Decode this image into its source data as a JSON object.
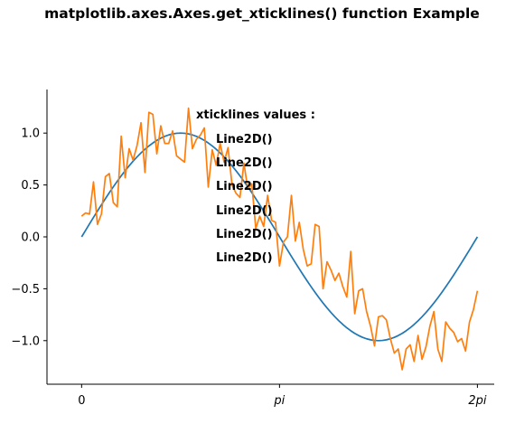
{
  "chart_data": {
    "type": "line",
    "title": "matplotlib.axes.Axes.get_xticklines() function Example",
    "xlabel": "",
    "ylabel": "",
    "xlim": [
      -0.55,
      6.55
    ],
    "ylim": [
      -1.42,
      1.42
    ],
    "grid": false,
    "x_ticks": [
      {
        "value": 0,
        "label": "0"
      },
      {
        "value": 3.14159,
        "label": "pi"
      },
      {
        "value": 6.28319,
        "label": "2pi"
      }
    ],
    "y_ticks": [
      {
        "value": 1.0,
        "label": "1.0"
      },
      {
        "value": 0.5,
        "label": "0.5"
      },
      {
        "value": 0.0,
        "label": "0.0"
      },
      {
        "value": -0.5,
        "label": "−0.5"
      },
      {
        "value": -1.0,
        "label": "−1.0"
      }
    ],
    "series": [
      {
        "color": "#1f77b4",
        "function": "sin",
        "x_range": [
          0,
          6.28319
        ],
        "n_points": 101
      },
      {
        "color": "#ff7f0e",
        "x_range": [
          0,
          6.28319
        ],
        "values": [
          0.2,
          0.23,
          0.22,
          0.53,
          0.12,
          0.22,
          0.58,
          0.61,
          0.33,
          0.29,
          0.97,
          0.57,
          0.85,
          0.74,
          0.88,
          1.1,
          0.62,
          1.2,
          1.18,
          0.8,
          1.07,
          0.9,
          0.9,
          1.02,
          0.78,
          0.75,
          0.72,
          1.24,
          0.85,
          0.94,
          0.98,
          1.05,
          0.48,
          0.84,
          0.69,
          0.9,
          0.72,
          0.86,
          0.5,
          0.42,
          0.38,
          0.71,
          0.46,
          0.51,
          0.08,
          0.2,
          0.1,
          0.4,
          0.16,
          0.14,
          -0.28,
          -0.05,
          0.0,
          0.4,
          -0.04,
          0.14,
          -0.12,
          -0.28,
          -0.26,
          0.12,
          0.1,
          -0.5,
          -0.24,
          -0.32,
          -0.42,
          -0.35,
          -0.48,
          -0.58,
          -0.14,
          -0.74,
          -0.52,
          -0.5,
          -0.72,
          -0.86,
          -1.05,
          -0.77,
          -0.76,
          -0.8,
          -0.98,
          -1.12,
          -1.08,
          -1.28,
          -1.08,
          -1.04,
          -1.2,
          -0.95,
          -1.18,
          -1.06,
          -0.86,
          -0.72,
          -1.08,
          -1.2,
          -0.82,
          -0.88,
          -0.92,
          -1.01,
          -0.98,
          -1.1,
          -0.82,
          -0.7,
          -0.52
        ]
      }
    ],
    "annotations": [
      "xticklines values :",
      "Line2D()",
      "Line2D()",
      "Line2D()",
      "Line2D()",
      "Line2D()",
      "Line2D()"
    ]
  }
}
